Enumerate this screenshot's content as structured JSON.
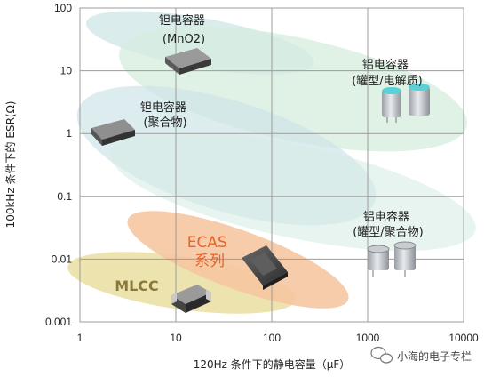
{
  "chart_data": {
    "type": "scatter",
    "title": "",
    "xlabel": "120Hz 条件下的静电容量（μF）",
    "ylabel": "100kHz 条件下的 ESR(Ω)",
    "xscale": "log",
    "yscale": "log",
    "xlim": [
      1,
      10000
    ],
    "ylim": [
      0.001,
      100
    ],
    "x_ticks": [
      "1",
      "10",
      "100",
      "1000",
      "10000"
    ],
    "y_ticks": [
      "100",
      "10",
      "1",
      "0.1",
      "0.01",
      "0.001"
    ],
    "grid": true,
    "regions": [
      {
        "label_lines": [
          "钽电容器",
          "(MnO2)"
        ],
        "color": "#d7ebea",
        "center": {
          "x": 90,
          "y": 12
        }
      },
      {
        "label_lines": [
          "铝电容器",
          "(罐型/电解质)"
        ],
        "color": "#d3ecdc",
        "center": {
          "x": 900,
          "y": 4
        }
      },
      {
        "label_lines": [
          "钽电容器",
          "(聚合物)"
        ],
        "color": "#cfe3e6",
        "center": {
          "x": 60,
          "y": 0.3
        }
      },
      {
        "label_lines": [
          "铝电容器",
          "(罐型/聚合物)"
        ],
        "color": "#d6ebe3",
        "center": {
          "x": 600,
          "y": 0.05
        }
      },
      {
        "label_lines": [
          "ECAS",
          "系列"
        ],
        "color": "#f5c7a4",
        "center": {
          "x": 110,
          "y": 0.012
        }
      },
      {
        "label_lines": [
          "MLCC"
        ],
        "color": "#ece0a8",
        "center": {
          "x": 15,
          "y": 0.004
        }
      }
    ]
  },
  "watermark": {
    "icon": "wechat-icon",
    "text": "小海的电子专栏"
  }
}
